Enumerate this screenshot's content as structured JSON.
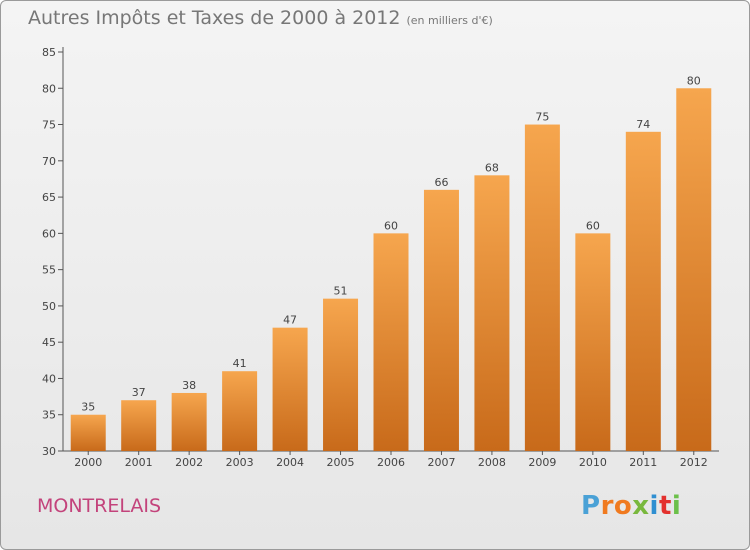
{
  "title": "Autres Impôts et Taxes de 2000 à 2012",
  "unit": "(en milliers d'€)",
  "commune": "MONTRELAIS",
  "logo": {
    "letters": [
      "P",
      "r",
      "o",
      "x",
      "i",
      "t",
      "i"
    ],
    "colors": [
      "#4aa1d6",
      "#f07a1f",
      "#f07a1f",
      "#79b83d",
      "#2f8fd1",
      "#e3312e",
      "#6cc04a"
    ]
  },
  "colors": {
    "bar_top": "#f6a64e",
    "bar_bottom": "#c86a1a",
    "title": "#777777",
    "commune": "#c3437b"
  },
  "chart_data": {
    "type": "bar",
    "categories": [
      "2000",
      "2001",
      "2002",
      "2003",
      "2004",
      "2005",
      "2006",
      "2007",
      "2008",
      "2009",
      "2010",
      "2011",
      "2012"
    ],
    "values": [
      35,
      37,
      38,
      41,
      47,
      51,
      60,
      66,
      68,
      75,
      60,
      74,
      80
    ],
    "ylim": [
      30,
      85
    ],
    "yticks": [
      30,
      35,
      40,
      45,
      50,
      55,
      60,
      65,
      70,
      75,
      80,
      85
    ],
    "grid": false,
    "data_labels": true
  }
}
